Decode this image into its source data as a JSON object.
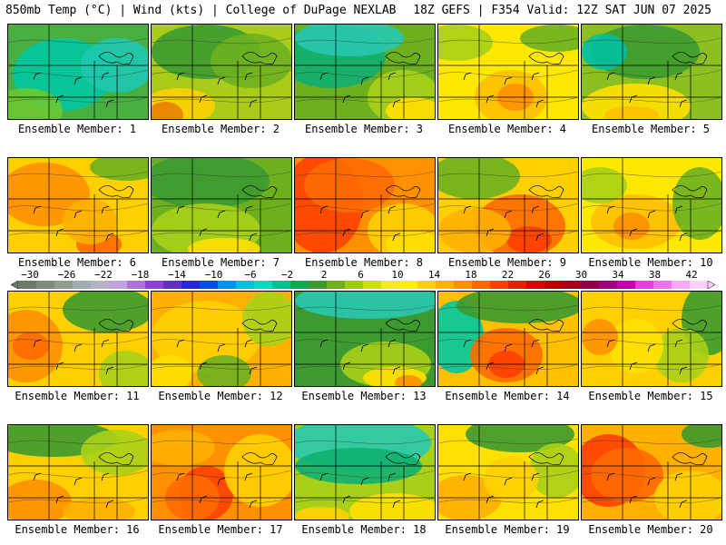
{
  "header": {
    "left": "850mb Temp (°C) | Wind (kts) | College of DuPage NEXLAB",
    "right": "18Z GEFS | F354 Valid: 12Z SAT JUN 07 2025"
  },
  "colorbar": {
    "labels": [
      "−30",
      "−26",
      "−22",
      "−18",
      "−14",
      "−10",
      "−6",
      "−2",
      "2",
      "6",
      "10",
      "14",
      "18",
      "22",
      "26",
      "30",
      "34",
      "38",
      "42"
    ],
    "colors": [
      "#6b7a6b",
      "#7e8e7e",
      "#8f9f8f",
      "#9fafb0",
      "#b3b3c4",
      "#c0a0e0",
      "#b070e0",
      "#9040d0",
      "#6030c0",
      "#2a2acc",
      "#0050e0",
      "#0090f0",
      "#00c0e0",
      "#00d8c0",
      "#00c090",
      "#10a850",
      "#3c9a30",
      "#6cb020",
      "#a0c818",
      "#d0dc10",
      "#f2ec10",
      "#fff000",
      "#ffd000",
      "#ffb000",
      "#ff9000",
      "#ff6a00",
      "#ff4000",
      "#f01a00",
      "#d80000",
      "#b80000",
      "#a00020",
      "#900048",
      "#a00080",
      "#c000b0",
      "#e040e0",
      "#f070f0",
      "#f8a8f8",
      "#fcd0fc"
    ]
  },
  "panels": [
    {
      "caption": "Ensemble Member: 1",
      "base": "#48b040",
      "blobs": [
        [
          "#00c8a0",
          60,
          55,
          55,
          40
        ],
        [
          "#1ec8b0",
          120,
          45,
          40,
          30
        ],
        [
          "#6cc830",
          20,
          95,
          40,
          25
        ]
      ]
    },
    {
      "caption": "Ensemble Member: 2",
      "base": "#a8cc18",
      "blobs": [
        [
          "#3c9a30",
          60,
          30,
          60,
          30
        ],
        [
          "#ffd000",
          30,
          90,
          40,
          20
        ],
        [
          "#e88000",
          15,
          100,
          20,
          15
        ],
        [
          "#6cb020",
          110,
          40,
          45,
          30
        ]
      ]
    },
    {
      "caption": "Ensemble Member: 3",
      "base": "#6cb020",
      "blobs": [
        [
          "#10b070",
          40,
          35,
          60,
          35
        ],
        [
          "#28c8b0",
          60,
          15,
          60,
          20
        ],
        [
          "#a8d018",
          120,
          80,
          40,
          30
        ],
        [
          "#ffe000",
          130,
          95,
          30,
          15
        ]
      ]
    },
    {
      "caption": "Ensemble Member: 4",
      "base": "#ffe800",
      "blobs": [
        [
          "#ffc000",
          80,
          80,
          40,
          30
        ],
        [
          "#ff9000",
          85,
          80,
          20,
          15
        ],
        [
          "#a8d018",
          20,
          20,
          40,
          20
        ],
        [
          "#6cb020",
          130,
          15,
          40,
          15
        ]
      ]
    },
    {
      "caption": "Ensemble Member: 5",
      "base": "#8cc020",
      "blobs": [
        [
          "#3c9a30",
          70,
          30,
          60,
          30
        ],
        [
          "#ffe000",
          60,
          90,
          60,
          25
        ],
        [
          "#00c0a0",
          25,
          30,
          25,
          20
        ],
        [
          "#ffc000",
          55,
          100,
          30,
          10
        ]
      ]
    },
    {
      "caption": "Ensemble Member: 6",
      "base": "#ffd000",
      "blobs": [
        [
          "#ff9000",
          40,
          40,
          50,
          35
        ],
        [
          "#ff6a00",
          100,
          95,
          25,
          15
        ],
        [
          "#ffb000",
          90,
          70,
          30,
          25
        ],
        [
          "#6cb020",
          130,
          10,
          40,
          15
        ]
      ]
    },
    {
      "caption": "Ensemble Member: 7",
      "base": "#6cb020",
      "blobs": [
        [
          "#3c9a30",
          60,
          25,
          70,
          30
        ],
        [
          "#a8d018",
          60,
          80,
          60,
          30
        ],
        [
          "#ffe000",
          80,
          100,
          40,
          12
        ]
      ]
    },
    {
      "caption": "Ensemble Member: 8",
      "base": "#ff9000",
      "blobs": [
        [
          "#ff4000",
          30,
          50,
          45,
          55
        ],
        [
          "#ff6a00",
          60,
          30,
          50,
          30
        ],
        [
          "#ffd000",
          120,
          80,
          40,
          30
        ],
        [
          "#ffe000",
          130,
          95,
          30,
          15
        ]
      ]
    },
    {
      "caption": "Ensemble Member: 9",
      "base": "#ffd000",
      "blobs": [
        [
          "#ff6a00",
          90,
          75,
          50,
          35
        ],
        [
          "#ff4000",
          100,
          90,
          25,
          15
        ],
        [
          "#6cb020",
          40,
          20,
          50,
          25
        ],
        [
          "#ffb000",
          40,
          80,
          40,
          25
        ]
      ]
    },
    {
      "caption": "Ensemble Member: 10",
      "base": "#ffe800",
      "blobs": [
        [
          "#ffc000",
          60,
          70,
          50,
          30
        ],
        [
          "#ff9000",
          55,
          75,
          20,
          15
        ],
        [
          "#a8d018",
          20,
          30,
          30,
          20
        ],
        [
          "#6cb020",
          130,
          50,
          30,
          40
        ]
      ]
    },
    {
      "caption": "Ensemble Member: 11",
      "base": "#ffd000",
      "blobs": [
        [
          "#ff9000",
          20,
          60,
          40,
          40
        ],
        [
          "#ff6a00",
          25,
          60,
          20,
          15
        ],
        [
          "#3c9a30",
          110,
          20,
          50,
          25
        ],
        [
          "#a8d018",
          130,
          90,
          30,
          25
        ]
      ]
    },
    {
      "caption": "Ensemble Member: 12",
      "base": "#ffb000",
      "blobs": [
        [
          "#ffd000",
          60,
          50,
          60,
          40
        ],
        [
          "#6cb020",
          80,
          90,
          30,
          20
        ],
        [
          "#a8d018",
          130,
          30,
          30,
          30
        ],
        [
          "#ffe000",
          20,
          90,
          25,
          20
        ]
      ]
    },
    {
      "caption": "Ensemble Member: 13",
      "base": "#3c9a30",
      "blobs": [
        [
          "#28c8b0",
          80,
          10,
          80,
          20
        ],
        [
          "#a8d018",
          100,
          80,
          50,
          25
        ],
        [
          "#ffe000",
          110,
          95,
          35,
          12
        ],
        [
          "#ff9000",
          125,
          100,
          15,
          8
        ]
      ]
    },
    {
      "caption": "Ensemble Member: 14",
      "base": "#ffc000",
      "blobs": [
        [
          "#00c8a0",
          20,
          50,
          30,
          40
        ],
        [
          "#ff6a00",
          75,
          70,
          40,
          30
        ],
        [
          "#ff4000",
          75,
          80,
          20,
          15
        ],
        [
          "#3c9a30",
          90,
          15,
          70,
          20
        ]
      ]
    },
    {
      "caption": "Ensemble Member: 15",
      "base": "#ffd000",
      "blobs": [
        [
          "#3c9a30",
          140,
          30,
          30,
          40
        ],
        [
          "#a8d018",
          110,
          70,
          30,
          30
        ],
        [
          "#ffe000",
          60,
          60,
          30,
          30
        ],
        [
          "#ff9000",
          20,
          50,
          20,
          20
        ]
      ]
    },
    {
      "caption": "Ensemble Member: 16",
      "base": "#ffd000",
      "blobs": [
        [
          "#3c9a30",
          50,
          15,
          70,
          20
        ],
        [
          "#ff9000",
          30,
          85,
          40,
          25
        ],
        [
          "#a8d018",
          120,
          30,
          40,
          25
        ],
        [
          "#ffb000",
          100,
          95,
          40,
          15
        ]
      ]
    },
    {
      "caption": "Ensemble Member: 17",
      "base": "#ff9000",
      "blobs": [
        [
          "#ff4000",
          60,
          75,
          30,
          30
        ],
        [
          "#ff6a00",
          45,
          80,
          30,
          25
        ],
        [
          "#ffd000",
          120,
          50,
          40,
          40
        ],
        [
          "#ffb000",
          30,
          25,
          40,
          20
        ]
      ]
    },
    {
      "caption": "Ensemble Member: 18",
      "base": "#a8d018",
      "blobs": [
        [
          "#28c8b0",
          70,
          20,
          80,
          30
        ],
        [
          "#10b070",
          70,
          45,
          70,
          20
        ],
        [
          "#ffe000",
          110,
          95,
          50,
          20
        ],
        [
          "#ffd000",
          30,
          100,
          30,
          10
        ]
      ]
    },
    {
      "caption": "Ensemble Member: 19",
      "base": "#ffe000",
      "blobs": [
        [
          "#3c9a30",
          90,
          10,
          60,
          20
        ],
        [
          "#ffb000",
          30,
          80,
          40,
          25
        ],
        [
          "#a8d018",
          130,
          50,
          30,
          30
        ],
        [
          "#ffd000",
          80,
          60,
          30,
          25
        ]
      ]
    },
    {
      "caption": "Ensemble Member: 20",
      "base": "#ffb000",
      "blobs": [
        [
          "#ff4000",
          30,
          50,
          40,
          40
        ],
        [
          "#ff6a00",
          50,
          55,
          40,
          30
        ],
        [
          "#ffd000",
          120,
          80,
          40,
          30
        ],
        [
          "#3c9a30",
          140,
          10,
          30,
          15
        ]
      ]
    }
  ]
}
